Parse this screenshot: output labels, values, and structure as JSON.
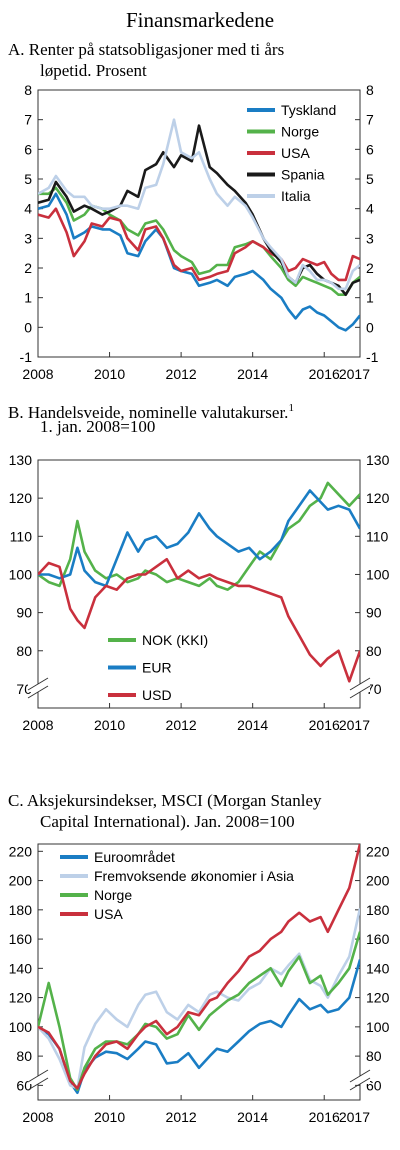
{
  "page_title": "Finansmarkedene",
  "chart_data": [
    {
      "id": "A",
      "type": "line",
      "title": "A.  Renter på statsobligasjoner med ti års\nløpetid. Prosent",
      "xlabel": "",
      "ylabel": "",
      "xlim": [
        2008,
        2017
      ],
      "ylim": [
        -1,
        8
      ],
      "yticks": [
        -1,
        0,
        1,
        2,
        3,
        4,
        5,
        6,
        7,
        8
      ],
      "xticks": [
        2008,
        2010,
        2012,
        2014,
        2016,
        2017
      ],
      "legend_position": "top-right",
      "series": [
        {
          "name": "Tyskland",
          "color": "#1a7dc4",
          "x": [
            2008,
            2008.3,
            2008.5,
            2008.8,
            2009,
            2009.3,
            2009.5,
            2009.8,
            2010,
            2010.3,
            2010.5,
            2010.8,
            2011,
            2011.3,
            2011.5,
            2011.8,
            2012,
            2012.3,
            2012.5,
            2012.8,
            2013,
            2013.3,
            2013.5,
            2013.8,
            2014,
            2014.3,
            2014.5,
            2014.8,
            2015,
            2015.2,
            2015.4,
            2015.6,
            2015.8,
            2016,
            2016.2,
            2016.4,
            2016.6,
            2016.8,
            2017
          ],
          "values": [
            4.0,
            4.1,
            4.5,
            3.8,
            3.0,
            3.2,
            3.4,
            3.3,
            3.3,
            3.1,
            2.5,
            2.4,
            2.9,
            3.3,
            3.0,
            2.0,
            1.9,
            1.8,
            1.4,
            1.5,
            1.6,
            1.4,
            1.7,
            1.8,
            1.9,
            1.6,
            1.3,
            1.0,
            0.6,
            0.3,
            0.6,
            0.7,
            0.5,
            0.4,
            0.2,
            0.0,
            -0.1,
            0.1,
            0.4
          ]
        },
        {
          "name": "Norge",
          "color": "#54b24a",
          "x": [
            2008,
            2008.3,
            2008.5,
            2008.8,
            2009,
            2009.3,
            2009.5,
            2009.8,
            2010,
            2010.3,
            2010.5,
            2010.8,
            2011,
            2011.3,
            2011.5,
            2011.8,
            2012,
            2012.3,
            2012.5,
            2012.8,
            2013,
            2013.3,
            2013.5,
            2013.8,
            2014,
            2014.3,
            2014.5,
            2014.8,
            2015,
            2015.2,
            2015.4,
            2015.6,
            2015.8,
            2016,
            2016.2,
            2016.4,
            2016.6,
            2016.8,
            2017
          ],
          "values": [
            4.5,
            4.5,
            4.7,
            4.2,
            3.6,
            3.8,
            4.1,
            4.0,
            3.8,
            3.6,
            3.3,
            3.1,
            3.5,
            3.6,
            3.3,
            2.6,
            2.4,
            2.2,
            1.8,
            1.9,
            2.1,
            2.1,
            2.7,
            2.8,
            2.9,
            2.7,
            2.4,
            2.0,
            1.6,
            1.4,
            1.7,
            1.6,
            1.5,
            1.4,
            1.3,
            1.1,
            1.1,
            1.5,
            1.7
          ]
        },
        {
          "name": "USA",
          "color": "#c9303d",
          "x": [
            2008,
            2008.3,
            2008.5,
            2008.8,
            2009,
            2009.3,
            2009.5,
            2009.8,
            2010,
            2010.3,
            2010.5,
            2010.8,
            2011,
            2011.3,
            2011.5,
            2011.8,
            2012,
            2012.3,
            2012.5,
            2012.8,
            2013,
            2013.3,
            2013.5,
            2013.8,
            2014,
            2014.3,
            2014.5,
            2014.8,
            2015,
            2015.2,
            2015.4,
            2015.6,
            2015.8,
            2016,
            2016.2,
            2016.4,
            2016.6,
            2016.8,
            2017
          ],
          "values": [
            3.8,
            3.7,
            4.0,
            3.2,
            2.4,
            2.9,
            3.5,
            3.4,
            3.7,
            3.6,
            3.0,
            2.6,
            3.3,
            3.4,
            3.0,
            2.1,
            1.9,
            2.0,
            1.6,
            1.7,
            1.8,
            1.9,
            2.5,
            2.7,
            2.9,
            2.7,
            2.5,
            2.3,
            1.9,
            2.0,
            2.3,
            2.2,
            2.1,
            2.2,
            1.8,
            1.6,
            1.6,
            2.4,
            2.3
          ]
        },
        {
          "name": "Spania",
          "color": "#1a1a1a",
          "x": [
            2008,
            2008.3,
            2008.5,
            2008.8,
            2009,
            2009.3,
            2009.5,
            2009.8,
            2010,
            2010.3,
            2010.5,
            2010.8,
            2011,
            2011.3,
            2011.5,
            2011.8,
            2012,
            2012.3,
            2012.5,
            2012.8,
            2013,
            2013.3,
            2013.5,
            2013.8,
            2014,
            2014.3,
            2014.5,
            2014.8,
            2015,
            2015.2,
            2015.4,
            2015.6,
            2015.8,
            2016,
            2016.2,
            2016.4,
            2016.6,
            2016.8,
            2017
          ],
          "values": [
            4.2,
            4.3,
            4.9,
            4.4,
            3.9,
            4.1,
            4.0,
            3.8,
            3.9,
            4.1,
            4.6,
            4.4,
            5.3,
            5.5,
            5.9,
            5.4,
            5.8,
            5.6,
            6.8,
            5.4,
            5.2,
            4.8,
            4.6,
            4.2,
            3.8,
            3.0,
            2.6,
            2.2,
            1.7,
            1.5,
            2.0,
            2.1,
            1.8,
            1.6,
            1.5,
            1.4,
            1.1,
            1.5,
            1.6
          ]
        },
        {
          "name": "Italia",
          "color": "#bdd0e8",
          "x": [
            2008,
            2008.3,
            2008.5,
            2008.8,
            2009,
            2009.3,
            2009.5,
            2009.8,
            2010,
            2010.3,
            2010.5,
            2010.8,
            2011,
            2011.3,
            2011.5,
            2011.8,
            2012,
            2012.3,
            2012.5,
            2012.8,
            2013,
            2013.3,
            2013.5,
            2013.8,
            2014,
            2014.3,
            2014.5,
            2014.8,
            2015,
            2015.2,
            2015.4,
            2015.6,
            2015.8,
            2016,
            2016.2,
            2016.4,
            2016.6,
            2016.8,
            2017
          ],
          "values": [
            4.5,
            4.7,
            5.1,
            4.6,
            4.4,
            4.4,
            4.1,
            4.0,
            4.0,
            4.1,
            4.1,
            4.0,
            4.7,
            4.8,
            5.5,
            7.0,
            5.9,
            5.7,
            5.9,
            5.0,
            4.5,
            4.1,
            4.4,
            4.1,
            3.7,
            3.0,
            2.7,
            2.3,
            1.7,
            1.5,
            2.1,
            1.9,
            1.6,
            1.6,
            1.5,
            1.3,
            1.3,
            1.9,
            2.1
          ]
        }
      ]
    },
    {
      "id": "B",
      "type": "line",
      "title": "B.  Handelsveide, nominelle valutakurser.\n1. jan. 2008=100",
      "title_superscript": "1",
      "xlabel": "",
      "ylabel": "",
      "xlim": [
        2008,
        2017
      ],
      "ylim": [
        65,
        130
      ],
      "yticks": [
        70,
        80,
        90,
        100,
        110,
        120,
        130
      ],
      "xticks": [
        2008,
        2010,
        2012,
        2014,
        2016,
        2017
      ],
      "axis_break": true,
      "legend_position": "bottom-left",
      "series": [
        {
          "name": "NOK (KKI)",
          "color": "#54b24a",
          "x": [
            2008,
            2008.3,
            2008.6,
            2008.9,
            2009.1,
            2009.3,
            2009.6,
            2009.9,
            2010.2,
            2010.5,
            2010.8,
            2011,
            2011.3,
            2011.6,
            2011.9,
            2012.2,
            2012.5,
            2012.8,
            2013,
            2013.3,
            2013.6,
            2013.9,
            2014.2,
            2014.5,
            2014.8,
            2015,
            2015.3,
            2015.6,
            2015.9,
            2016.1,
            2016.4,
            2016.7,
            2017
          ],
          "values": [
            100,
            98,
            97,
            104,
            114,
            106,
            101,
            99,
            100,
            98,
            99,
            101,
            100,
            98,
            99,
            98,
            97,
            99,
            97,
            96,
            98,
            102,
            106,
            104,
            109,
            112,
            114,
            118,
            120,
            124,
            121,
            118,
            121
          ]
        },
        {
          "name": "EUR",
          "color": "#1a7dc4",
          "x": [
            2008,
            2008.3,
            2008.6,
            2008.9,
            2009.1,
            2009.3,
            2009.6,
            2009.9,
            2010.2,
            2010.5,
            2010.8,
            2011,
            2011.3,
            2011.6,
            2011.9,
            2012.2,
            2012.5,
            2012.8,
            2013,
            2013.3,
            2013.6,
            2013.9,
            2014.2,
            2014.5,
            2014.8,
            2015,
            2015.3,
            2015.6,
            2015.9,
            2016.1,
            2016.4,
            2016.7,
            2017
          ],
          "values": [
            100,
            100,
            99,
            100,
            107,
            101,
            98,
            97,
            104,
            111,
            106,
            109,
            110,
            107,
            108,
            111,
            116,
            112,
            110,
            108,
            106,
            107,
            104,
            106,
            109,
            114,
            118,
            122,
            119,
            117,
            118,
            117,
            112
          ]
        },
        {
          "name": "USD",
          "color": "#c9303d",
          "x": [
            2008,
            2008.3,
            2008.6,
            2008.9,
            2009.1,
            2009.3,
            2009.6,
            2009.9,
            2010.2,
            2010.5,
            2010.8,
            2011,
            2011.3,
            2011.6,
            2011.9,
            2012.2,
            2012.5,
            2012.8,
            2013,
            2013.3,
            2013.6,
            2013.9,
            2014.2,
            2014.5,
            2014.8,
            2015,
            2015.3,
            2015.6,
            2015.9,
            2016.1,
            2016.4,
            2016.7,
            2017
          ],
          "values": [
            100,
            103,
            102,
            91,
            88,
            86,
            94,
            97,
            96,
            99,
            100,
            100,
            102,
            104,
            99,
            101,
            99,
            100,
            99,
            98,
            97,
            97,
            96,
            95,
            94,
            89,
            84,
            79,
            76,
            78,
            80,
            72,
            80
          ]
        }
      ]
    },
    {
      "id": "C",
      "type": "line",
      "title": "C.  Aksjekursindekser, MSCI (Morgan Stanley\nCapital International). Jan. 2008=100",
      "xlabel": "",
      "ylabel": "",
      "xlim": [
        2008,
        2017
      ],
      "ylim": [
        50,
        225
      ],
      "yticks": [
        60,
        80,
        100,
        120,
        140,
        160,
        180,
        200,
        220
      ],
      "xticks": [
        2008,
        2010,
        2012,
        2014,
        2016,
        2017
      ],
      "axis_break": true,
      "legend_position": "top-left",
      "series": [
        {
          "name": "Euroområdet",
          "color": "#1a7dc4",
          "x": [
            2008,
            2008.3,
            2008.6,
            2008.9,
            2009.1,
            2009.3,
            2009.6,
            2009.9,
            2010.2,
            2010.5,
            2010.8,
            2011,
            2011.3,
            2011.6,
            2011.9,
            2012.2,
            2012.5,
            2012.8,
            2013,
            2013.3,
            2013.6,
            2013.9,
            2014.2,
            2014.5,
            2014.8,
            2015,
            2015.3,
            2015.6,
            2015.9,
            2016.1,
            2016.4,
            2016.7,
            2017
          ],
          "values": [
            100,
            95,
            85,
            62,
            55,
            70,
            79,
            83,
            82,
            78,
            85,
            90,
            88,
            75,
            76,
            82,
            72,
            80,
            85,
            83,
            90,
            97,
            102,
            104,
            100,
            108,
            119,
            112,
            115,
            110,
            112,
            120,
            146
          ]
        },
        {
          "name": "Fremvoksende økonomier i Asia",
          "color": "#bdd0e8",
          "x": [
            2008,
            2008.3,
            2008.6,
            2008.9,
            2009.1,
            2009.3,
            2009.6,
            2009.9,
            2010.2,
            2010.5,
            2010.8,
            2011,
            2011.3,
            2011.6,
            2011.9,
            2012.2,
            2012.5,
            2012.8,
            2013,
            2013.3,
            2013.6,
            2013.9,
            2014.2,
            2014.5,
            2014.8,
            2015,
            2015.3,
            2015.6,
            2015.9,
            2016.1,
            2016.4,
            2016.7,
            2017
          ],
          "values": [
            100,
            92,
            78,
            60,
            58,
            86,
            102,
            112,
            105,
            100,
            115,
            122,
            124,
            110,
            105,
            115,
            110,
            122,
            124,
            120,
            118,
            126,
            130,
            140,
            136,
            142,
            150,
            132,
            128,
            120,
            135,
            148,
            181
          ]
        },
        {
          "name": "Norge",
          "color": "#54b24a",
          "x": [
            2008,
            2008.3,
            2008.6,
            2008.9,
            2009.1,
            2009.3,
            2009.6,
            2009.9,
            2010.2,
            2010.5,
            2010.8,
            2011,
            2011.3,
            2011.6,
            2011.9,
            2012.2,
            2012.5,
            2012.8,
            2013,
            2013.3,
            2013.6,
            2013.9,
            2014.2,
            2014.5,
            2014.8,
            2015,
            2015.3,
            2015.6,
            2015.9,
            2016.1,
            2016.4,
            2016.7,
            2017
          ],
          "values": [
            100,
            130,
            100,
            65,
            57,
            72,
            85,
            90,
            90,
            88,
            95,
            102,
            100,
            92,
            95,
            108,
            98,
            108,
            112,
            118,
            122,
            130,
            135,
            140,
            128,
            138,
            148,
            130,
            135,
            122,
            130,
            140,
            165
          ]
        },
        {
          "name": "USA",
          "color": "#c9303d",
          "x": [
            2008,
            2008.3,
            2008.6,
            2008.9,
            2009.1,
            2009.3,
            2009.6,
            2009.9,
            2010.2,
            2010.5,
            2010.8,
            2011,
            2011.3,
            2011.6,
            2011.9,
            2012.2,
            2012.5,
            2012.8,
            2013,
            2013.3,
            2013.6,
            2013.9,
            2014.2,
            2014.5,
            2014.8,
            2015,
            2015.3,
            2015.6,
            2015.9,
            2016.1,
            2016.4,
            2016.7,
            2017
          ],
          "values": [
            100,
            96,
            85,
            63,
            58,
            68,
            80,
            88,
            90,
            85,
            95,
            100,
            104,
            95,
            100,
            110,
            108,
            118,
            120,
            130,
            138,
            148,
            152,
            160,
            165,
            172,
            178,
            172,
            175,
            165,
            180,
            195,
            225
          ]
        }
      ]
    }
  ]
}
